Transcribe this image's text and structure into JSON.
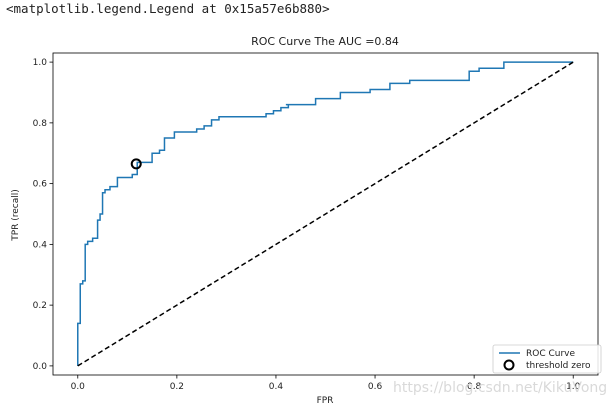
{
  "output_repr": "<matplotlib.legend.Legend at 0x15a57e6b880>",
  "watermark": "https://blog.csdn.net/KikuVong",
  "colors": {
    "roc_line": "#1f77b4",
    "diagonal": "#000000",
    "marker_edge": "#000000",
    "axes": "#000000"
  },
  "chart_data": {
    "type": "line",
    "title": "ROC Curve The AUC =0.84",
    "xlabel": "FPR",
    "ylabel": "TPR (recall)",
    "xlim": [
      -0.05,
      1.05
    ],
    "ylim": [
      -0.03,
      1.03
    ],
    "xticks": [
      0.0,
      0.2,
      0.4,
      0.6,
      0.8,
      1.0
    ],
    "yticks": [
      0.0,
      0.2,
      0.4,
      0.6,
      0.8,
      1.0
    ],
    "xtick_labels": [
      "0.0",
      "0.2",
      "0.4",
      "0.6",
      "0.8",
      "1.0"
    ],
    "ytick_labels": [
      "0.0",
      "0.2",
      "0.4",
      "0.6",
      "0.8",
      "1.0"
    ],
    "grid": false,
    "legend_location": "lower right",
    "series": [
      {
        "name": "ROC Curve",
        "style": "step",
        "x": [
          0.0,
          0.0,
          0.005,
          0.005,
          0.01,
          0.01,
          0.015,
          0.015,
          0.02,
          0.02,
          0.03,
          0.03,
          0.04,
          0.04,
          0.045,
          0.045,
          0.05,
          0.05,
          0.055,
          0.055,
          0.065,
          0.065,
          0.08,
          0.08,
          0.09,
          0.09,
          0.11,
          0.11,
          0.12,
          0.12,
          0.15,
          0.15,
          0.165,
          0.165,
          0.175,
          0.175,
          0.195,
          0.195,
          0.205,
          0.205,
          0.24,
          0.24,
          0.255,
          0.255,
          0.27,
          0.27,
          0.285,
          0.285,
          0.38,
          0.38,
          0.395,
          0.395,
          0.41,
          0.41,
          0.425,
          0.425,
          0.42,
          0.42,
          0.48,
          0.48,
          0.53,
          0.53,
          0.59,
          0.59,
          0.63,
          0.63,
          0.67,
          0.67,
          0.79,
          0.79,
          0.81,
          0.81,
          0.86,
          0.86,
          1.0
        ],
        "y": [
          0.0,
          0.14,
          0.14,
          0.27,
          0.27,
          0.28,
          0.28,
          0.4,
          0.4,
          0.41,
          0.41,
          0.42,
          0.42,
          0.48,
          0.48,
          0.5,
          0.5,
          0.57,
          0.57,
          0.58,
          0.58,
          0.59,
          0.59,
          0.62,
          0.62,
          0.62,
          0.62,
          0.63,
          0.63,
          0.67,
          0.67,
          0.7,
          0.7,
          0.71,
          0.71,
          0.75,
          0.75,
          0.77,
          0.77,
          0.77,
          0.77,
          0.78,
          0.78,
          0.79,
          0.79,
          0.81,
          0.81,
          0.82,
          0.82,
          0.83,
          0.83,
          0.84,
          0.84,
          0.85,
          0.85,
          0.86,
          0.86,
          0.86,
          0.86,
          0.88,
          0.88,
          0.9,
          0.9,
          0.91,
          0.91,
          0.93,
          0.93,
          0.94,
          0.94,
          0.97,
          0.97,
          0.98,
          0.98,
          1.0,
          1.0
        ]
      },
      {
        "name": "",
        "style": "dashed",
        "x": [
          0.0,
          1.0
        ],
        "y": [
          0.0,
          1.0
        ]
      }
    ],
    "markers": [
      {
        "name": "threshold zero",
        "x": 0.118,
        "y": 0.665
      }
    ]
  }
}
